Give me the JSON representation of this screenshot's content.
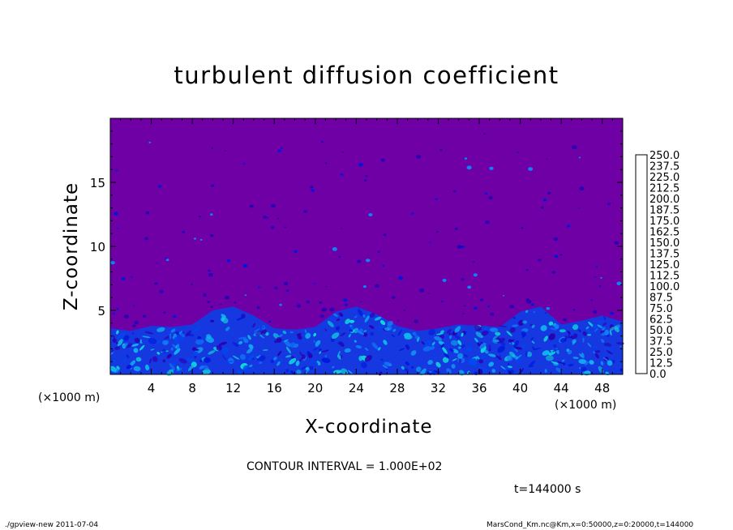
{
  "chart_data": {
    "type": "heatmap",
    "title": "turbulent diffusion coefficient",
    "xlabel": "X-coordinate",
    "ylabel": "Z-coordinate",
    "x_unit_label_left": "(×1000 m)",
    "x_unit_label_right": "(×1000 m)",
    "xlim": [
      0,
      50
    ],
    "ylim": [
      0,
      20
    ],
    "x_ticks": [
      4,
      8,
      12,
      16,
      20,
      24,
      28,
      32,
      36,
      40,
      44,
      48
    ],
    "y_ticks": [
      5,
      10,
      15
    ],
    "colorbar": {
      "levels": [
        "0.0",
        "12.5",
        "25.0",
        "37.5",
        "50.0",
        "62.5",
        "75.0",
        "87.5",
        "100.0",
        "112.5",
        "125.0",
        "137.5",
        "150.0",
        "162.5",
        "175.0",
        "187.5",
        "200.0",
        "212.5",
        "225.0",
        "237.5",
        "250.0"
      ],
      "colors": [
        "#6e00a6",
        "#2a00b4",
        "#0018dc",
        "#0048f0",
        "#1080f8",
        "#10b4f0",
        "#10d8d8",
        "#10e4a8",
        "#10dc70",
        "#10d840",
        "#30dc10",
        "#78e410",
        "#b0ec10",
        "#e8f010",
        "#f8d810",
        "#f8a810",
        "#f87810",
        "#f84810",
        "#f02020",
        "#f06060"
      ]
    },
    "background_value_color": "#6e00a6",
    "turbulent_layer_top_profile": [
      {
        "x": 0,
        "z": 3.6
      },
      {
        "x": 2,
        "z": 3.4
      },
      {
        "x": 4,
        "z": 3.8
      },
      {
        "x": 6,
        "z": 3.7
      },
      {
        "x": 8,
        "z": 3.9
      },
      {
        "x": 10,
        "z": 5.0
      },
      {
        "x": 12,
        "z": 5.3
      },
      {
        "x": 14,
        "z": 4.6
      },
      {
        "x": 16,
        "z": 3.6
      },
      {
        "x": 18,
        "z": 3.5
      },
      {
        "x": 20,
        "z": 3.7
      },
      {
        "x": 22,
        "z": 4.9
      },
      {
        "x": 24,
        "z": 5.3
      },
      {
        "x": 26,
        "z": 4.7
      },
      {
        "x": 28,
        "z": 3.8
      },
      {
        "x": 30,
        "z": 3.4
      },
      {
        "x": 32,
        "z": 3.6
      },
      {
        "x": 34,
        "z": 3.9
      },
      {
        "x": 36,
        "z": 3.8
      },
      {
        "x": 38,
        "z": 3.7
      },
      {
        "x": 40,
        "z": 4.9
      },
      {
        "x": 42,
        "z": 5.3
      },
      {
        "x": 44,
        "z": 3.9
      },
      {
        "x": 46,
        "z": 4.2
      },
      {
        "x": 48,
        "z": 4.6
      },
      {
        "x": 50,
        "z": 4.1
      }
    ],
    "contour_interval": "CONTOUR INTERVAL = 1.000E+02",
    "time": "t=144000 s"
  },
  "footer": {
    "left": "./gpview-new  2011-07-04",
    "right": "MarsCond_Km.nc@Km,x=0:50000,z=0:20000,t=144000"
  }
}
